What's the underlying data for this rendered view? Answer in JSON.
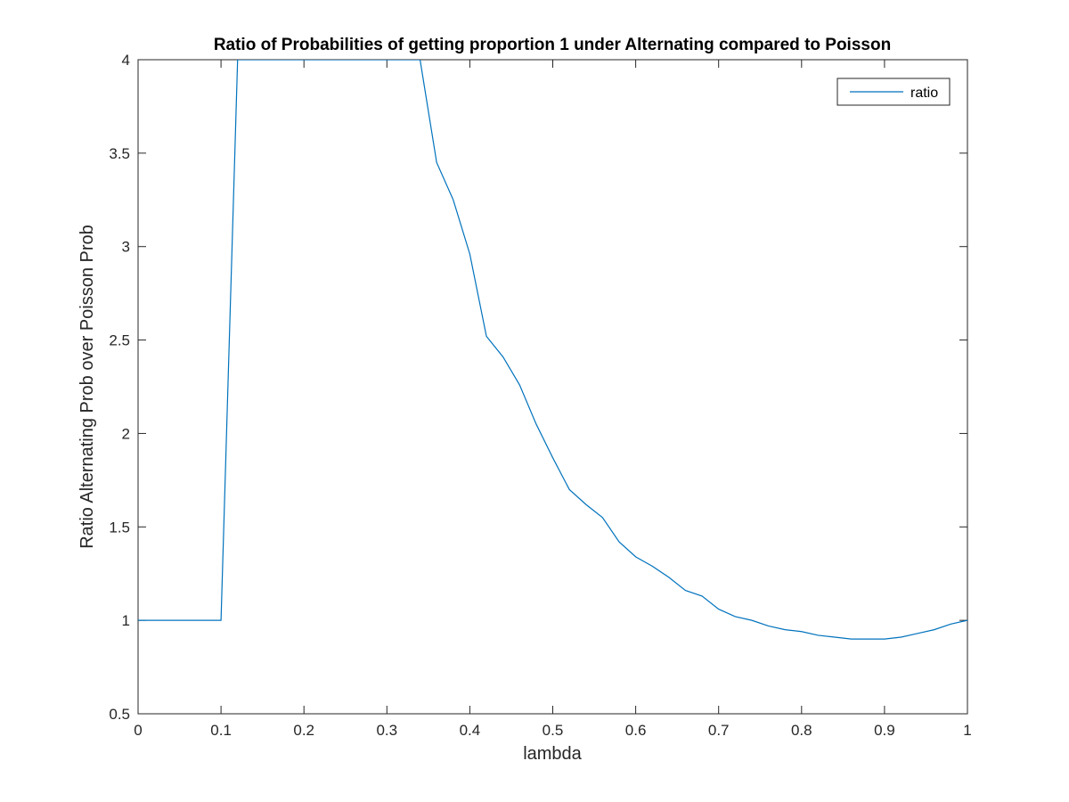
{
  "chart_data": {
    "type": "line",
    "title": "Ratio of Probabilities of getting proportion 1 under Alternating compared to Poisson",
    "xlabel": "lambda",
    "ylabel": "Ratio Alternating Prob over Poisson Prob",
    "xlim": [
      0,
      1
    ],
    "ylim": [
      0.5,
      4
    ],
    "xticks": [
      0,
      0.1,
      0.2,
      0.3,
      0.4,
      0.5,
      0.6,
      0.7,
      0.8,
      0.9,
      1
    ],
    "xtick_labels": [
      "0",
      "0.1",
      "0.2",
      "0.3",
      "0.4",
      "0.5",
      "0.6",
      "0.7",
      "0.8",
      "0.9",
      "1"
    ],
    "yticks": [
      0.5,
      1,
      1.5,
      2,
      2.5,
      3,
      3.5,
      4
    ],
    "ytick_labels": [
      "0.5",
      "1",
      "1.5",
      "2",
      "2.5",
      "3",
      "3.5",
      "4"
    ],
    "grid": false,
    "legend": {
      "placement": "top-right",
      "entries": [
        "ratio"
      ]
    },
    "line_color": "#0072BD",
    "series": [
      {
        "name": "ratio",
        "x": [
          0,
          0.02,
          0.04,
          0.06,
          0.08,
          0.1,
          0.12,
          0.14,
          0.16,
          0.18,
          0.2,
          0.22,
          0.24,
          0.26,
          0.28,
          0.3,
          0.32,
          0.34,
          0.36,
          0.38,
          0.4,
          0.42,
          0.44,
          0.46,
          0.48,
          0.5,
          0.52,
          0.54,
          0.56,
          0.58,
          0.6,
          0.62,
          0.64,
          0.66,
          0.68,
          0.7,
          0.72,
          0.74,
          0.76,
          0.78,
          0.8,
          0.82,
          0.84,
          0.86,
          0.88,
          0.9,
          0.92,
          0.94,
          0.96,
          0.98,
          1
        ],
        "values": [
          1,
          1,
          1,
          1,
          1,
          1,
          4,
          4,
          4,
          4,
          4,
          4,
          4,
          4,
          4,
          4,
          4,
          4,
          3.45,
          3.25,
          2.96,
          2.52,
          2.41,
          2.26,
          2.05,
          1.87,
          1.7,
          1.62,
          1.55,
          1.42,
          1.34,
          1.29,
          1.23,
          1.16,
          1.13,
          1.06,
          1.02,
          1.0,
          0.97,
          0.95,
          0.94,
          0.92,
          0.91,
          0.9,
          0.9,
          0.9,
          0.91,
          0.93,
          0.95,
          0.98,
          1.0
        ]
      }
    ]
  }
}
